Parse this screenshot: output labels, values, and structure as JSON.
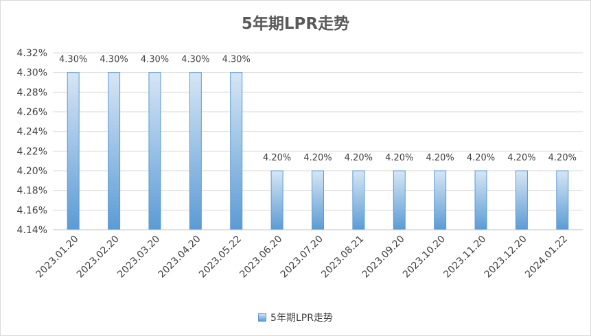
{
  "chart_data": {
    "type": "bar",
    "title": "5年期LPR走势",
    "categories": [
      "2023.01.20",
      "2023.02.20",
      "2023.03.20",
      "2023.04.20",
      "2023.05.22",
      "2023.06.20",
      "2023.07.20",
      "2023.08.21",
      "2023.09.20",
      "2023.10.20",
      "2023.11.20",
      "2023.12.20",
      "2024.01.22"
    ],
    "series": [
      {
        "name": "5年期LPR走势",
        "values": [
          4.3,
          4.3,
          4.3,
          4.3,
          4.3,
          4.2,
          4.2,
          4.2,
          4.2,
          4.2,
          4.2,
          4.2,
          4.2
        ],
        "labels": [
          "4.30%",
          "4.30%",
          "4.30%",
          "4.30%",
          "4.30%",
          "4.20%",
          "4.20%",
          "4.20%",
          "4.20%",
          "4.20%",
          "4.20%",
          "4.20%",
          "4.20%"
        ]
      }
    ],
    "ylim": [
      4.14,
      4.32
    ],
    "yticks": [
      "4.14%",
      "4.16%",
      "4.18%",
      "4.20%",
      "4.22%",
      "4.24%",
      "4.26%",
      "4.28%",
      "4.30%",
      "4.32%"
    ],
    "grid": true,
    "legend_position": "bottom",
    "bar_color": "#5b9bd5"
  }
}
